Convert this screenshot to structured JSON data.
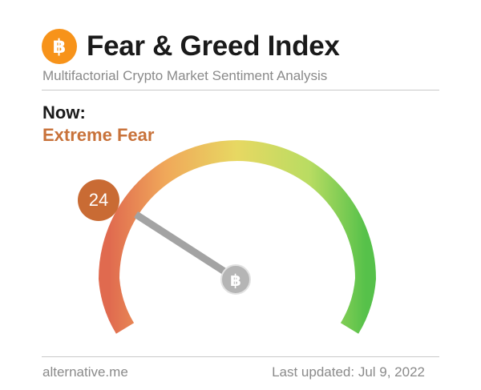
{
  "header": {
    "logo_glyph": "฿",
    "title": "Fear & Greed Index",
    "subtitle": "Multifactorial Crypto Market Sentiment Analysis"
  },
  "status": {
    "now_label": "Now:",
    "classification": "Extreme Fear",
    "value": "24"
  },
  "gauge": {
    "min": 0,
    "max": 100,
    "value": 24,
    "center_icon": "bitcoin-icon",
    "center_glyph": "฿",
    "colors": {
      "fear": "#e06a4f",
      "neutral_low": "#f0a85a",
      "neutral": "#e7d862",
      "greed": "#56c14a",
      "needle": "#a8a8a8",
      "badge": "#c96b34",
      "classification": "#c8723a"
    }
  },
  "footer": {
    "source": "alternative.me",
    "last_updated": "Last updated: Jul 9, 2022"
  }
}
